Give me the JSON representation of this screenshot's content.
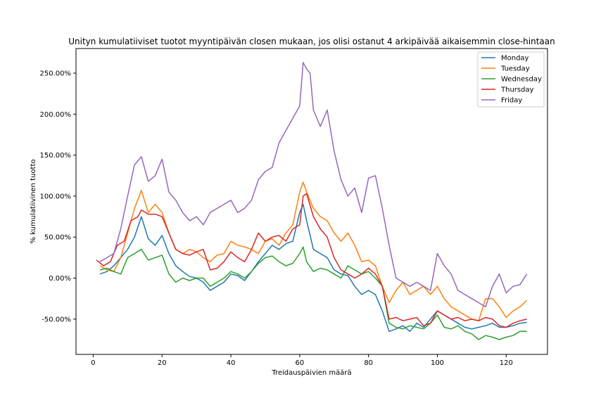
{
  "chart_data": {
    "type": "line",
    "title": "Unityn kumulatiiviset tuotot myyntipäivän closen mukaan, jos olisi ostanut 4 arkipäivää aikaisemmin close-hintaan",
    "xlabel": "Treidauspäivien määrä",
    "ylabel": "% kumulatiivinen tuotto",
    "xlim": [
      -5,
      132
    ],
    "ylim": [
      -93,
      280
    ],
    "xticks": [
      0,
      20,
      40,
      60,
      80,
      100,
      120
    ],
    "yticks": [
      -50,
      0,
      50,
      100,
      150,
      200,
      250
    ],
    "ytick_format": "percent_2dp",
    "grid": false,
    "legend_position": "top-right",
    "series": [
      {
        "name": "Monday",
        "color": "#1f77b4",
        "x": [
          2,
          4,
          6,
          8,
          10,
          12,
          14,
          16,
          18,
          20,
          22,
          24,
          26,
          28,
          30,
          32,
          34,
          36,
          38,
          40,
          42,
          44,
          46,
          48,
          50,
          52,
          54,
          56,
          58,
          60,
          61,
          62,
          64,
          66,
          68,
          70,
          72,
          74,
          76,
          78,
          80,
          82,
          84,
          86,
          88,
          90,
          92,
          94,
          96,
          98,
          100,
          102,
          104,
          106,
          108,
          110,
          112,
          114,
          116,
          118,
          120,
          122,
          124,
          126
        ],
        "y": [
          5,
          8,
          15,
          25,
          35,
          50,
          75,
          48,
          40,
          52,
          30,
          15,
          8,
          2,
          0,
          -5,
          -15,
          -10,
          -5,
          5,
          3,
          -3,
          8,
          20,
          30,
          40,
          35,
          42,
          45,
          80,
          90,
          70,
          35,
          30,
          25,
          10,
          5,
          3,
          -10,
          -20,
          -15,
          -20,
          -40,
          -65,
          -62,
          -58,
          -65,
          -55,
          -60,
          -50,
          -40,
          -45,
          -50,
          -55,
          -60,
          -62,
          -60,
          -58,
          -55,
          -60,
          -60,
          -58,
          -55,
          -54
        ]
      },
      {
        "name": "Tuesday",
        "color": "#ff7f0e",
        "x": [
          2,
          4,
          6,
          8,
          10,
          12,
          14,
          16,
          18,
          20,
          22,
          24,
          26,
          28,
          30,
          32,
          34,
          36,
          38,
          40,
          42,
          44,
          46,
          48,
          50,
          52,
          54,
          56,
          58,
          60,
          61,
          62,
          64,
          66,
          68,
          70,
          72,
          74,
          76,
          78,
          80,
          82,
          84,
          86,
          88,
          90,
          92,
          94,
          96,
          98,
          100,
          102,
          104,
          106,
          108,
          110,
          112,
          114,
          116,
          118,
          120,
          122,
          124,
          126
        ],
        "y": [
          15,
          10,
          8,
          25,
          55,
          85,
          107,
          80,
          90,
          80,
          55,
          35,
          30,
          35,
          32,
          25,
          20,
          28,
          30,
          45,
          40,
          38,
          35,
          30,
          45,
          48,
          40,
          55,
          65,
          105,
          117,
          105,
          85,
          75,
          70,
          55,
          45,
          55,
          40,
          20,
          22,
          15,
          -10,
          -30,
          -15,
          -5,
          -20,
          -15,
          -10,
          -20,
          -10,
          -25,
          -35,
          -40,
          -45,
          -50,
          -52,
          -25,
          -25,
          -35,
          -48,
          -40,
          -35,
          -27
        ]
      },
      {
        "name": "Wednesday",
        "color": "#2ca02c",
        "x": [
          2,
          4,
          6,
          8,
          10,
          12,
          14,
          16,
          18,
          20,
          22,
          24,
          26,
          28,
          30,
          32,
          34,
          36,
          38,
          40,
          42,
          44,
          46,
          48,
          50,
          52,
          54,
          56,
          58,
          60,
          61,
          62,
          64,
          66,
          68,
          70,
          72,
          74,
          76,
          78,
          80,
          82,
          84,
          86,
          88,
          90,
          92,
          94,
          96,
          98,
          100,
          102,
          104,
          106,
          108,
          110,
          112,
          114,
          116,
          118,
          120,
          122,
          124,
          126
        ],
        "y": [
          10,
          12,
          8,
          5,
          25,
          30,
          35,
          22,
          25,
          28,
          5,
          -5,
          0,
          -3,
          0,
          0,
          -10,
          -5,
          0,
          8,
          5,
          0,
          8,
          18,
          25,
          27,
          20,
          15,
          18,
          30,
          38,
          20,
          8,
          12,
          10,
          5,
          0,
          15,
          10,
          5,
          8,
          0,
          -10,
          -55,
          -60,
          -62,
          -58,
          -60,
          -62,
          -55,
          -45,
          -60,
          -62,
          -58,
          -65,
          -68,
          -75,
          -70,
          -72,
          -75,
          -72,
          -70,
          -65,
          -65
        ]
      },
      {
        "name": "Thursday",
        "color": "#d62728",
        "x": [
          1,
          3,
          5,
          7,
          9,
          11,
          13,
          14,
          16,
          18,
          20,
          22,
          24,
          26,
          28,
          30,
          32,
          34,
          36,
          38,
          40,
          42,
          44,
          46,
          48,
          50,
          52,
          54,
          56,
          58,
          60,
          61,
          62,
          64,
          66,
          68,
          70,
          72,
          74,
          76,
          78,
          80,
          82,
          84,
          86,
          88,
          90,
          92,
          94,
          96,
          98,
          100,
          102,
          104,
          106,
          108,
          110,
          112,
          114,
          116,
          118,
          120,
          122,
          124,
          126
        ],
        "y": [
          22,
          15,
          20,
          40,
          45,
          70,
          75,
          83,
          78,
          78,
          75,
          55,
          35,
          30,
          28,
          32,
          35,
          10,
          12,
          20,
          32,
          25,
          20,
          35,
          55,
          45,
          50,
          52,
          45,
          60,
          65,
          100,
          103,
          75,
          60,
          50,
          25,
          10,
          5,
          0,
          5,
          12,
          5,
          -10,
          -50,
          -48,
          -52,
          -50,
          -48,
          -58,
          -55,
          -40,
          -45,
          -50,
          -48,
          -52,
          -50,
          -52,
          -48,
          -50,
          -58,
          -60,
          -55,
          -52,
          -50
        ]
      },
      {
        "name": "Friday",
        "color": "#9467bd",
        "x": [
          2,
          4,
          6,
          8,
          10,
          12,
          14,
          16,
          18,
          20,
          22,
          24,
          26,
          28,
          30,
          32,
          34,
          36,
          38,
          40,
          42,
          44,
          46,
          48,
          50,
          52,
          54,
          56,
          58,
          60,
          61,
          62,
          63,
          64,
          66,
          68,
          70,
          72,
          74,
          76,
          78,
          80,
          82,
          84,
          86,
          88,
          90,
          92,
          94,
          96,
          98,
          100,
          102,
          104,
          106,
          108,
          110,
          112,
          114,
          116,
          118,
          120,
          122,
          124,
          126
        ],
        "y": [
          20,
          25,
          30,
          60,
          100,
          138,
          148,
          118,
          125,
          145,
          105,
          95,
          80,
          70,
          75,
          65,
          80,
          85,
          90,
          95,
          80,
          85,
          95,
          120,
          130,
          135,
          165,
          180,
          195,
          210,
          263,
          255,
          250,
          205,
          185,
          205,
          155,
          120,
          100,
          110,
          80,
          122,
          125,
          85,
          40,
          0,
          -5,
          -10,
          -5,
          -10,
          -15,
          30,
          15,
          5,
          -15,
          -20,
          -25,
          -30,
          -35,
          -10,
          5,
          -18,
          -10,
          -8,
          5
        ]
      }
    ]
  }
}
